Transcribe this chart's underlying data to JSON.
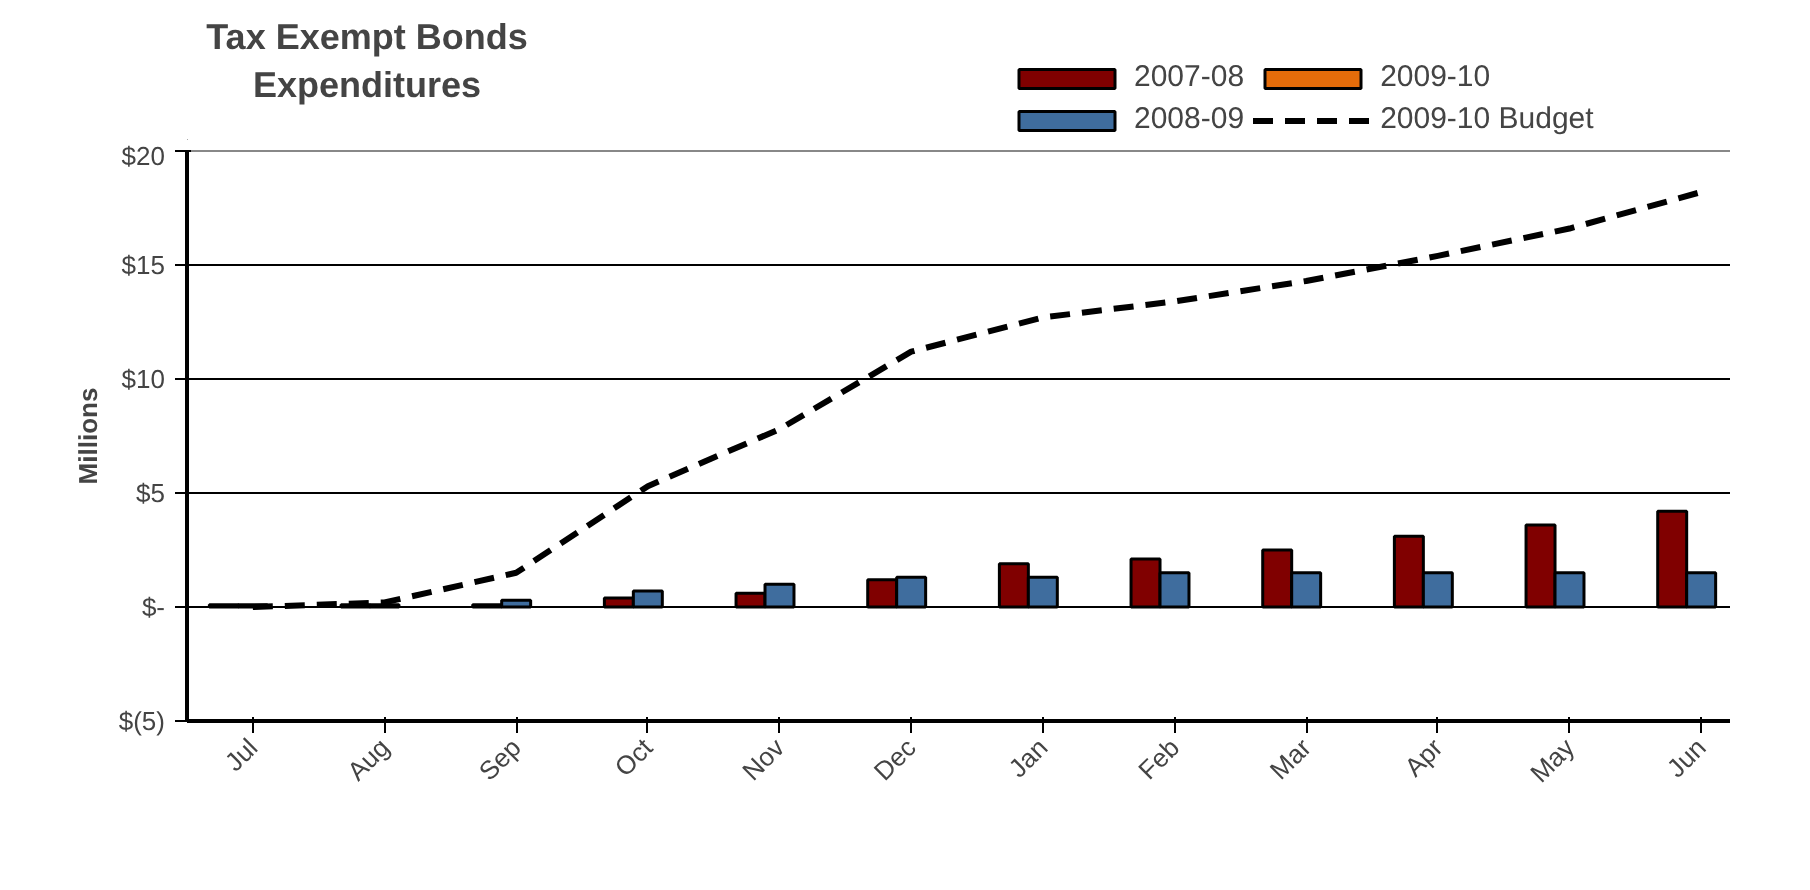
{
  "chart_data": {
    "type": "bar",
    "title": "Tax Exempt Bonds\nExpenditures",
    "ylabel": "Millions",
    "categories": [
      "Jul",
      "Aug",
      "Sep",
      "Oct",
      "Nov",
      "Dec",
      "Jan",
      "Feb",
      "Mar",
      "Apr",
      "May",
      "Jun"
    ],
    "series": [
      {
        "name": "2007-08",
        "color": "#800000",
        "values": [
          0.1,
          0.1,
          0.1,
          0.4,
          0.6,
          1.2,
          1.9,
          2.1,
          2.5,
          3.1,
          3.6,
          4.2
        ]
      },
      {
        "name": "2008-09",
        "color": "#3f6d9e",
        "values": [
          0.1,
          0.1,
          0.3,
          0.7,
          1.0,
          1.3,
          1.3,
          1.5,
          1.5,
          1.5,
          1.5,
          1.5
        ]
      },
      {
        "name": "2009-10",
        "color": "#e46c0a",
        "values": [
          null,
          null,
          null,
          null,
          null,
          null,
          null,
          null,
          null,
          null,
          null,
          null
        ]
      },
      {
        "name": "2009-10 Budget",
        "color": "#000000",
        "type": "line",
        "line_style": "dashed",
        "values": [
          0,
          0.2,
          1.5,
          5.3,
          7.8,
          11.2,
          12.7,
          13.4,
          14.3,
          15.4,
          16.6,
          18.2
        ]
      }
    ],
    "ylim": [
      -5,
      20
    ],
    "yticks": [
      {
        "value": -5,
        "label": "$(5)"
      },
      {
        "value": 0,
        "label": "$-"
      },
      {
        "value": 5,
        "label": "$5"
      },
      {
        "value": 10,
        "label": "$10"
      },
      {
        "value": 15,
        "label": "$15"
      },
      {
        "value": 20,
        "label": "$20"
      }
    ],
    "grid": "y",
    "legend": "top"
  }
}
